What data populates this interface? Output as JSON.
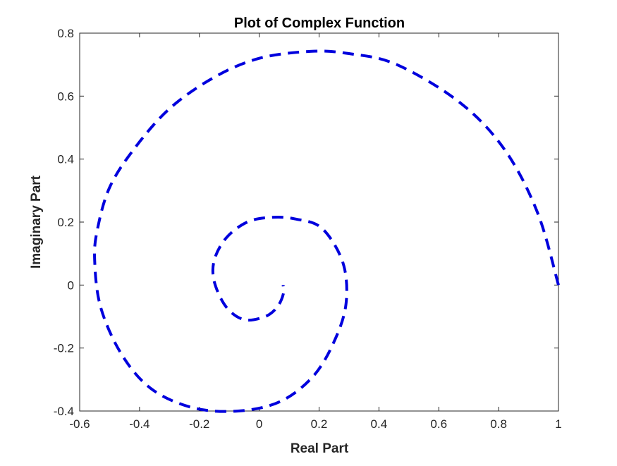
{
  "chart_data": {
    "type": "line",
    "title": "Plot of Complex Function",
    "xlabel": "Real Part",
    "ylabel": "Imaginary Part",
    "xlim": [
      -0.6,
      1
    ],
    "ylim": [
      -0.4,
      0.8
    ],
    "xticks": [
      "-0.6",
      "-0.4",
      "-0.2",
      "0",
      "0.2",
      "0.4",
      "0.6",
      "0.8",
      "1"
    ],
    "yticks": [
      "-0.4",
      "-0.2",
      "0",
      "0.2",
      "0.4",
      "0.6",
      "0.8"
    ],
    "grid": false,
    "legend": "none",
    "series": [
      {
        "line_style": "dashed",
        "color": "#0000dd",
        "x": [
          1.0,
          0.93,
          0.82,
          0.67,
          0.46,
          0.3,
          0.17,
          0.0,
          -0.15,
          -0.3,
          -0.42,
          -0.5,
          -0.54,
          -0.55,
          -0.53,
          -0.46,
          -0.36,
          -0.22,
          -0.07,
          0.07,
          0.18,
          0.25,
          0.29,
          0.28,
          0.21,
          0.12,
          0.04,
          -0.04,
          -0.11,
          -0.15,
          -0.15,
          -0.11,
          -0.05,
          0.02,
          0.06,
          0.08,
          0.08
        ],
        "y": [
          0.0,
          0.23,
          0.43,
          0.58,
          0.7,
          0.735,
          0.742,
          0.72,
          0.66,
          0.56,
          0.43,
          0.31,
          0.18,
          0.08,
          -0.07,
          -0.22,
          -0.33,
          -0.39,
          -0.4,
          -0.37,
          -0.29,
          -0.18,
          -0.06,
          0.07,
          0.18,
          0.21,
          0.215,
          0.2,
          0.15,
          0.08,
          0.01,
          -0.07,
          -0.11,
          -0.1,
          -0.07,
          -0.03,
          0.0
        ]
      }
    ]
  }
}
